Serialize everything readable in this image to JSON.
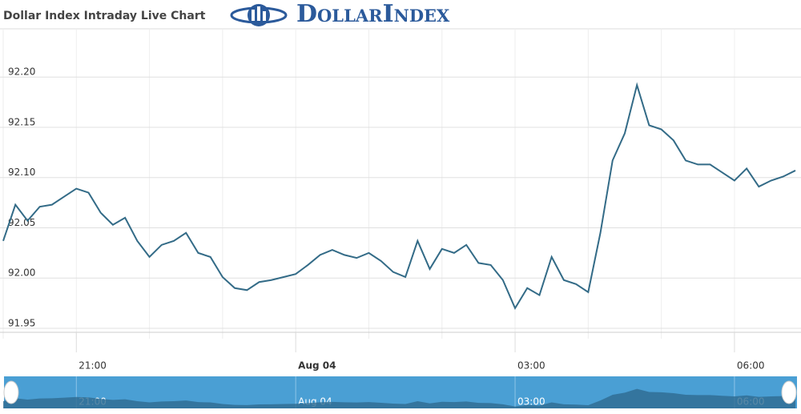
{
  "chart_data": {
    "type": "line",
    "title": "Dollar Index Intraday Live Chart",
    "brand": "DollarIndex",
    "x": [
      "20:00",
      "20:10",
      "20:20",
      "20:30",
      "20:40",
      "20:50",
      "21:00",
      "21:10",
      "21:20",
      "21:30",
      "21:40",
      "21:50",
      "22:00",
      "22:10",
      "22:20",
      "22:30",
      "22:40",
      "22:50",
      "23:00",
      "23:10",
      "23:20",
      "23:30",
      "23:40",
      "23:50",
      "00:00",
      "00:10",
      "00:20",
      "00:30",
      "00:40",
      "00:50",
      "01:00",
      "01:10",
      "01:20",
      "01:30",
      "01:40",
      "01:50",
      "02:00",
      "02:10",
      "02:20",
      "02:30",
      "02:40",
      "02:50",
      "03:00",
      "03:10",
      "03:20",
      "03:30",
      "03:40",
      "03:50",
      "04:00",
      "04:10",
      "04:20",
      "04:30",
      "04:40",
      "04:50",
      "05:00",
      "05:10",
      "05:20",
      "05:30",
      "05:40",
      "05:50",
      "06:00",
      "06:10",
      "06:20",
      "06:30",
      "06:40",
      "06:50"
    ],
    "series": [
      {
        "name": "Dollar Index",
        "color": "#336b87",
        "values": [
          92.037,
          92.073,
          92.057,
          92.071,
          92.073,
          92.081,
          92.089,
          92.085,
          92.065,
          92.053,
          92.06,
          92.037,
          92.021,
          92.033,
          92.037,
          92.045,
          92.025,
          92.021,
          92.001,
          91.99,
          91.988,
          91.996,
          91.998,
          92.001,
          92.004,
          92.013,
          92.023,
          92.028,
          92.023,
          92.02,
          92.025,
          92.017,
          92.006,
          92.001,
          92.037,
          92.009,
          92.029,
          92.025,
          92.033,
          92.015,
          92.013,
          91.998,
          91.97,
          91.99,
          91.983,
          92.021,
          91.998,
          91.994,
          91.986,
          92.045,
          92.117,
          92.144,
          92.192,
          92.152,
          92.148,
          92.137,
          92.117,
          92.113,
          92.113,
          92.105,
          92.097,
          92.109,
          92.091,
          92.097,
          92.101,
          92.107
        ]
      }
    ],
    "ylim": [
      91.946,
      92.248
    ],
    "yticks": [
      91.95,
      {
        "value": 92.0,
        "label": "92.00"
      },
      92.05,
      {
        "value": 92.1,
        "label": "92.10"
      },
      92.15,
      {
        "value": 92.2,
        "label": "92.20"
      }
    ],
    "xticks": [
      "21:00",
      {
        "value": "00:00",
        "label": "Aug 04"
      },
      "03:00",
      "06:00"
    ],
    "grid": true
  }
}
